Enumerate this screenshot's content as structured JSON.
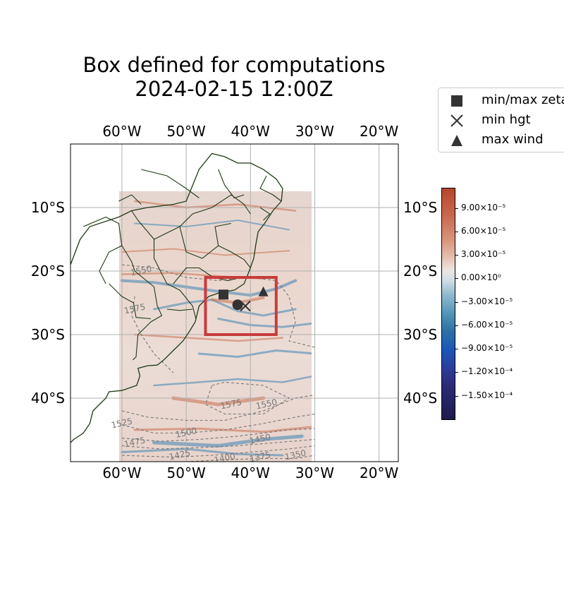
{
  "title": {
    "line1": "Box defined for computations",
    "line2": "2024-02-15 12:00Z"
  },
  "map": {
    "lon_range": [
      -68,
      -17
    ],
    "lat_range": [
      -50,
      0
    ],
    "lon_ticks": [
      {
        "lon": -60,
        "label": "60°W"
      },
      {
        "lon": -50,
        "label": "50°W"
      },
      {
        "lon": -40,
        "label": "40°W"
      },
      {
        "lon": -30,
        "label": "30°W"
      },
      {
        "lon": -20,
        "label": "20°W"
      }
    ],
    "lat_ticks": [
      {
        "lat": -10,
        "label": "10°S"
      },
      {
        "lat": -20,
        "label": "20°S"
      },
      {
        "lat": -30,
        "label": "30°S"
      },
      {
        "lat": -40,
        "label": "40°S"
      }
    ],
    "field_extent": {
      "lon": [
        -60,
        -30
      ],
      "lat": [
        -50,
        -7
      ]
    },
    "computation_box": {
      "lon": [
        -47,
        -36
      ],
      "lat": [
        -30,
        -21
      ],
      "color": "#c83c3c"
    },
    "contour_labels": [
      {
        "text": "1550",
        "lon": -57,
        "lat": -20
      },
      {
        "text": "1575",
        "lon": -58,
        "lat": -26
      },
      {
        "text": "1575",
        "lon": -43,
        "lat": -41
      },
      {
        "text": "1550",
        "lon": -37.5,
        "lat": -41
      },
      {
        "text": "1525",
        "lon": -60,
        "lat": -44
      },
      {
        "text": "1500",
        "lon": -50,
        "lat": -45.5
      },
      {
        "text": "1475",
        "lon": -58,
        "lat": -47
      },
      {
        "text": "1450",
        "lon": -38.5,
        "lat": -46.5
      },
      {
        "text": "1425",
        "lon": -51,
        "lat": -49
      },
      {
        "text": "1400",
        "lon": -44,
        "lat": -49.5
      },
      {
        "text": "1375",
        "lon": -38.5,
        "lat": -49.3
      },
      {
        "text": "1350",
        "lon": -33,
        "lat": -49
      }
    ],
    "markers": {
      "min_max_zeta": {
        "lon": -44.2,
        "lat": -23.7
      },
      "circle": {
        "lon": -42,
        "lat": -25.3
      },
      "min_hgt": {
        "lon": -40.8,
        "lat": -25.5
      },
      "max_wind": {
        "lon": -38,
        "lat": -23.3
      }
    },
    "colors": {
      "coastline": "#1e3a14",
      "grid": "#b0b0b0",
      "contour": "#777777",
      "marker": "#333333",
      "positive": "#c8704e",
      "negative": "#3d84b4"
    }
  },
  "legend": {
    "items": [
      {
        "marker": "square",
        "label": "min/max zeta"
      },
      {
        "marker": "x",
        "label": "min hgt"
      },
      {
        "marker": "triangle",
        "label": "max wind"
      }
    ]
  },
  "colorbar": {
    "labels": [
      {
        "value": 9e-05,
        "text": "9.00×10⁻⁵"
      },
      {
        "value": 6e-05,
        "text": "6.00×10⁻⁵"
      },
      {
        "value": 3e-05,
        "text": "3.00×10⁻⁵"
      },
      {
        "value": 0,
        "text": "0.00×10⁰"
      },
      {
        "value": -3e-05,
        "text": "−3.00×10⁻⁵"
      },
      {
        "value": -6e-05,
        "text": "−6.00×10⁻⁵"
      },
      {
        "value": -9e-05,
        "text": "−9.00×10⁻⁵"
      },
      {
        "value": -0.00012,
        "text": "−1.20×10⁻⁴"
      },
      {
        "value": -0.00015,
        "text": "−1.50×10⁻⁴"
      }
    ],
    "range": [
      -0.00018,
      0.000115
    ]
  }
}
